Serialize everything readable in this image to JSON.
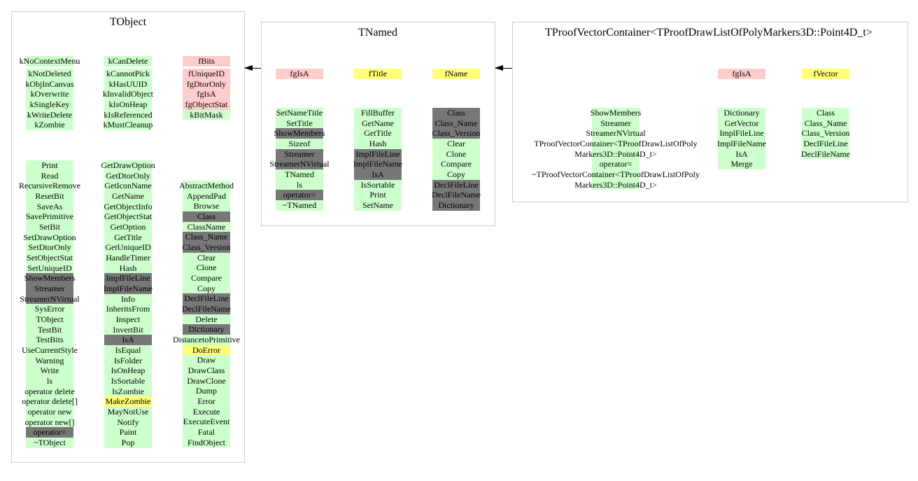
{
  "colors": {
    "g": "#ccffcc",
    "d": "#777777",
    "p": "#ffcccc",
    "y": "#ffff77"
  },
  "classes": [
    {
      "name": "TObject",
      "data_columns": [
        [
          {
            "t": "kNoContextMenu",
            "c": "g"
          },
          {
            "t": "kNotDeleted",
            "c": "g"
          },
          {
            "t": "kObjInCanvas",
            "c": "g"
          },
          {
            "t": "kOverwrite",
            "c": "g"
          },
          {
            "t": "kSingleKey",
            "c": "g"
          },
          {
            "t": "kWriteDelete",
            "c": "g"
          },
          {
            "t": "kZombie",
            "c": "g"
          }
        ],
        [
          {
            "t": "kCanDelete",
            "c": "g"
          },
          {
            "t": "kCannotPick",
            "c": "g"
          },
          {
            "t": "kHasUUID",
            "c": "g"
          },
          {
            "t": "kInvalidObject",
            "c": "g"
          },
          {
            "t": "kIsOnHeap",
            "c": "g"
          },
          {
            "t": "kIsReferenced",
            "c": "g"
          },
          {
            "t": "kMustCleanup",
            "c": "g"
          }
        ],
        [
          {
            "t": "fBits",
            "c": "p"
          },
          {
            "t": "fUniqueID",
            "c": "p"
          },
          {
            "t": "fgDtorOnly",
            "c": "p"
          },
          {
            "t": "fgIsA",
            "c": "p"
          },
          {
            "t": "fgObjectStat",
            "c": "p"
          },
          {
            "t": "kBitMask",
            "c": "g"
          }
        ]
      ],
      "method_columns": [
        [
          {
            "t": "Print",
            "c": "g"
          },
          {
            "t": "Read",
            "c": "g"
          },
          {
            "t": "RecursiveRemove",
            "c": "g"
          },
          {
            "t": "ResetBit",
            "c": "g"
          },
          {
            "t": "SaveAs",
            "c": "g"
          },
          {
            "t": "SavePrimitive",
            "c": "g"
          },
          {
            "t": "SetBit",
            "c": "g"
          },
          {
            "t": "SetDrawOption",
            "c": "g"
          },
          {
            "t": "SetDtorOnly",
            "c": "g"
          },
          {
            "t": "SetObjectStat",
            "c": "g"
          },
          {
            "t": "SetUniqueID",
            "c": "g"
          },
          {
            "t": "ShowMembers",
            "c": "d"
          },
          {
            "t": "Streamer",
            "c": "d"
          },
          {
            "t": "StreamerNVirtual",
            "c": "d"
          },
          {
            "t": "SysError",
            "c": "g"
          },
          {
            "t": "TObject",
            "c": "g"
          },
          {
            "t": "TestBit",
            "c": "g"
          },
          {
            "t": "TestBits",
            "c": "g"
          },
          {
            "t": "UseCurrentStyle",
            "c": "g"
          },
          {
            "t": "Warning",
            "c": "g"
          },
          {
            "t": "Write",
            "c": "g"
          },
          {
            "t": "ls",
            "c": "g"
          },
          {
            "t": "operator delete",
            "c": "g"
          },
          {
            "t": "operator delete[]",
            "c": "g"
          },
          {
            "t": "operator new",
            "c": "g"
          },
          {
            "t": "operator new[]",
            "c": "g"
          },
          {
            "t": "operator=",
            "c": "d"
          },
          {
            "t": "~TObject",
            "c": "g"
          }
        ],
        [
          {
            "t": "GetDrawOption",
            "c": "g"
          },
          {
            "t": "GetDtorOnly",
            "c": "g"
          },
          {
            "t": "GetIconName",
            "c": "g"
          },
          {
            "t": "GetName",
            "c": "g"
          },
          {
            "t": "GetObjectInfo",
            "c": "g"
          },
          {
            "t": "GetObjectStat",
            "c": "g"
          },
          {
            "t": "GetOption",
            "c": "g"
          },
          {
            "t": "GetTitle",
            "c": "g"
          },
          {
            "t": "GetUniqueID",
            "c": "g"
          },
          {
            "t": "HandleTimer",
            "c": "g"
          },
          {
            "t": "Hash",
            "c": "g"
          },
          {
            "t": "ImplFileLine",
            "c": "d"
          },
          {
            "t": "ImplFileName",
            "c": "d"
          },
          {
            "t": "Info",
            "c": "g"
          },
          {
            "t": "InheritsFrom",
            "c": "g"
          },
          {
            "t": "Inspect",
            "c": "g"
          },
          {
            "t": "InvertBit",
            "c": "g"
          },
          {
            "t": "IsA",
            "c": "d"
          },
          {
            "t": "IsEqual",
            "c": "g"
          },
          {
            "t": "IsFolder",
            "c": "g"
          },
          {
            "t": "IsOnHeap",
            "c": "g"
          },
          {
            "t": "IsSortable",
            "c": "g"
          },
          {
            "t": "IsZombie",
            "c": "g"
          },
          {
            "t": "MakeZombie",
            "c": "y"
          },
          {
            "t": "MayNotUse",
            "c": "g"
          },
          {
            "t": "Notify",
            "c": "g"
          },
          {
            "t": "Paint",
            "c": "g"
          },
          {
            "t": "Pop",
            "c": "g"
          }
        ],
        [
          {
            "t": "AbstractMethod",
            "c": "g"
          },
          {
            "t": "AppendPad",
            "c": "g"
          },
          {
            "t": "Browse",
            "c": "g"
          },
          {
            "t": "Class",
            "c": "d"
          },
          {
            "t": "ClassName",
            "c": "g"
          },
          {
            "t": "Class_Name",
            "c": "d"
          },
          {
            "t": "Class_Version",
            "c": "d"
          },
          {
            "t": "Clear",
            "c": "g"
          },
          {
            "t": "Clone",
            "c": "g"
          },
          {
            "t": "Compare",
            "c": "g"
          },
          {
            "t": "Copy",
            "c": "g"
          },
          {
            "t": "DeclFileLine",
            "c": "d"
          },
          {
            "t": "DeclFileName",
            "c": "d"
          },
          {
            "t": "Delete",
            "c": "g"
          },
          {
            "t": "Dictionary",
            "c": "d"
          },
          {
            "t": "DistancetoPrimitive",
            "c": "g"
          },
          {
            "t": "DoError",
            "c": "y"
          },
          {
            "t": "Draw",
            "c": "g"
          },
          {
            "t": "DrawClass",
            "c": "g"
          },
          {
            "t": "DrawClone",
            "c": "g"
          },
          {
            "t": "Dump",
            "c": "g"
          },
          {
            "t": "Error",
            "c": "g"
          },
          {
            "t": "Execute",
            "c": "g"
          },
          {
            "t": "ExecuteEvent",
            "c": "g"
          },
          {
            "t": "Fatal",
            "c": "g"
          },
          {
            "t": "FindObject",
            "c": "g"
          }
        ]
      ]
    },
    {
      "name": "TNamed",
      "data_columns": [
        [
          {
            "t": "fgIsA",
            "c": "p"
          }
        ],
        [
          {
            "t": "fTitle",
            "c": "y"
          }
        ],
        [
          {
            "t": "fName",
            "c": "y"
          }
        ]
      ],
      "method_columns": [
        [
          {
            "t": "SetNameTitle",
            "c": "g"
          },
          {
            "t": "SetTitle",
            "c": "g"
          },
          {
            "t": "ShowMembers",
            "c": "d"
          },
          {
            "t": "Sizeof",
            "c": "g"
          },
          {
            "t": "Streamer",
            "c": "d"
          },
          {
            "t": "StreamerNVirtual",
            "c": "d"
          },
          {
            "t": "TNamed",
            "c": "g"
          },
          {
            "t": "ls",
            "c": "g"
          },
          {
            "t": "operator=",
            "c": "d"
          },
          {
            "t": "~TNamed",
            "c": "g"
          }
        ],
        [
          {
            "t": "FillBuffer",
            "c": "g"
          },
          {
            "t": "GetName",
            "c": "g"
          },
          {
            "t": "GetTitle",
            "c": "g"
          },
          {
            "t": "Hash",
            "c": "g"
          },
          {
            "t": "ImplFileLine",
            "c": "d"
          },
          {
            "t": "ImplFileName",
            "c": "d"
          },
          {
            "t": "IsA",
            "c": "d"
          },
          {
            "t": "IsSortable",
            "c": "g"
          },
          {
            "t": "Print",
            "c": "g"
          },
          {
            "t": "SetName",
            "c": "g"
          }
        ],
        [
          {
            "t": "Class",
            "c": "d"
          },
          {
            "t": "Class_Name",
            "c": "d"
          },
          {
            "t": "Class_Version",
            "c": "d"
          },
          {
            "t": "Clear",
            "c": "g"
          },
          {
            "t": "Clone",
            "c": "g"
          },
          {
            "t": "Compare",
            "c": "g"
          },
          {
            "t": "Copy",
            "c": "g"
          },
          {
            "t": "DeclFileLine",
            "c": "d"
          },
          {
            "t": "DeclFileName",
            "c": "d"
          },
          {
            "t": "Dictionary",
            "c": "d"
          }
        ]
      ]
    },
    {
      "name": "TProofVectorContainer<TProofDrawListOfPolyMarkers3D::Point4D_t>",
      "data_columns": [
        [],
        [
          {
            "t": "fgIsA",
            "c": "p"
          }
        ],
        [
          {
            "t": "fVector",
            "c": "y"
          }
        ]
      ],
      "method_columns": [
        [
          {
            "t": "ShowMembers",
            "c": "g"
          },
          {
            "t": "Streamer",
            "c": "g"
          },
          {
            "t": "StreamerNVirtual",
            "c": "g"
          },
          {
            "t": "TProofVectorContainer<TProofDrawListOfPolyMarkers3D::Point4D_t>",
            "c": "g"
          },
          {
            "t": "operator=",
            "c": "g"
          },
          {
            "t": "~TProofVectorContainer<TProofDrawListOfPolyMarkers3D::Point4D_t>",
            "c": "g"
          }
        ],
        [
          {
            "t": "Dictionary",
            "c": "g"
          },
          {
            "t": "GetVector",
            "c": "g"
          },
          {
            "t": "ImplFileLine",
            "c": "g"
          },
          {
            "t": "ImplFileName",
            "c": "g"
          },
          {
            "t": "IsA",
            "c": "g"
          },
          {
            "t": "Merge",
            "c": "g"
          }
        ],
        [
          {
            "t": "Class",
            "c": "g"
          },
          {
            "t": "Class_Name",
            "c": "g"
          },
          {
            "t": "Class_Version",
            "c": "g"
          },
          {
            "t": "DeclFileLine",
            "c": "g"
          },
          {
            "t": "DeclFileName",
            "c": "g"
          }
        ]
      ]
    }
  ]
}
